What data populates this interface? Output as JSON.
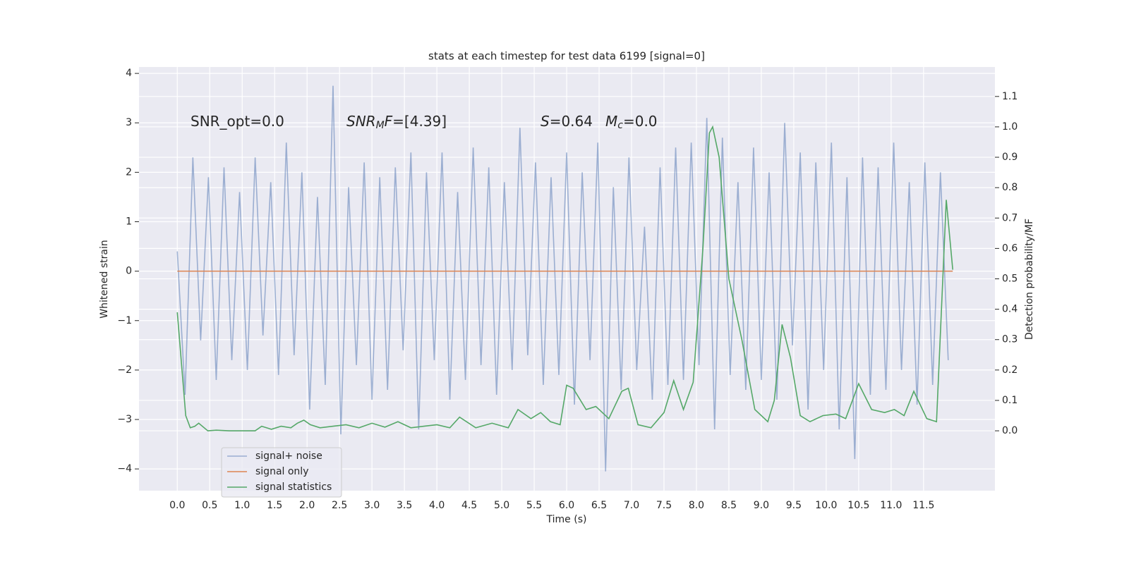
{
  "chart_data": {
    "type": "line",
    "title": "stats at each timestep for test data 6199 [signal=0]",
    "xlabel": "Time (s)",
    "ylabel": "Whitened strain",
    "y2label": "Detection probability/MF",
    "xlim": [
      -0.59,
      12.6
    ],
    "ylim": [
      -4.44,
      4.13
    ],
    "y2lim": [
      -0.197,
      1.197
    ],
    "xticks": [
      {
        "value": 0,
        "label": "0.0"
      },
      0.5,
      {
        "value": 1,
        "label": "1.0"
      },
      1.5,
      {
        "value": 2,
        "label": "2.0"
      },
      2.5,
      {
        "value": 3,
        "label": "3.0"
      },
      3.5,
      {
        "value": 4,
        "label": "4.0"
      },
      4.5,
      {
        "value": 5,
        "label": "5.0"
      },
      5.5,
      {
        "value": 6,
        "label": "6.0"
      },
      6.5,
      {
        "value": 7,
        "label": "7.0"
      },
      7.5,
      {
        "value": 8,
        "label": "8.0"
      },
      8.5,
      {
        "value": 9,
        "label": "9.0"
      },
      9.5,
      {
        "value": 10,
        "label": "10.0"
      },
      10.5,
      {
        "value": 11,
        "label": "11.0"
      },
      11.5
    ],
    "yticks": [
      {
        "value": -4,
        "label": "−4"
      },
      {
        "value": -3,
        "label": "−3"
      },
      {
        "value": -2,
        "label": "−2"
      },
      {
        "value": -1,
        "label": "−1"
      },
      0,
      1,
      2,
      3,
      4
    ],
    "y2ticks": [
      {
        "value": 0,
        "label": "0.0"
      },
      0.1,
      0.2,
      0.3,
      0.4,
      0.5,
      0.6,
      0.7,
      0.8,
      0.9,
      {
        "value": 1,
        "label": "1.0"
      },
      1.1
    ],
    "grid": true,
    "legend": "lower left",
    "annotations": [
      [
        {
          "text": "SNR_opt=0.0"
        }
      ],
      [
        {
          "text": "SNR",
          "style": "italic"
        },
        {
          "text": "M",
          "style": "italic-sub"
        },
        {
          "text": "F",
          "style": "italic"
        },
        {
          "text": "=[4.39]"
        }
      ],
      [
        {
          "text": "S",
          "style": "italic"
        },
        {
          "text": "=0.64"
        }
      ],
      [
        {
          "text": "M",
          "style": "italic"
        },
        {
          "text": "c",
          "style": "italic-sub"
        },
        {
          "text": "=0.0"
        }
      ]
    ],
    "series": [
      {
        "name": "signal+ noise",
        "color": "#4c72b0",
        "opacity": 0.5,
        "x": [
          0,
          0.12,
          0.24,
          0.36,
          0.48,
          0.6,
          0.72,
          0.84,
          0.96,
          1.08,
          1.2,
          1.32,
          1.44,
          1.56,
          1.68,
          1.8,
          1.92,
          2.04,
          2.16,
          2.28,
          2.4,
          2.52,
          2.64,
          2.76,
          2.88,
          3,
          3.12,
          3.24,
          3.36,
          3.48,
          3.6,
          3.72,
          3.84,
          3.96,
          4.08,
          4.2,
          4.32,
          4.44,
          4.56,
          4.68,
          4.8,
          4.92,
          5.04,
          5.16,
          5.28,
          5.4,
          5.52,
          5.64,
          5.76,
          5.88,
          6,
          6.12,
          6.24,
          6.36,
          6.48,
          6.6,
          6.72,
          6.84,
          6.96,
          7.08,
          7.2,
          7.32,
          7.44,
          7.56,
          7.68,
          7.8,
          7.92,
          8.04,
          8.16,
          8.28,
          8.4,
          8.52,
          8.64,
          8.76,
          8.88,
          9,
          9.12,
          9.24,
          9.36,
          9.48,
          9.6,
          9.72,
          9.84,
          9.96,
          10.08,
          10.2,
          10.32,
          10.44,
          10.56,
          10.68,
          10.8,
          10.92,
          11.04,
          11.16,
          11.28,
          11.4,
          11.52,
          11.64,
          11.76,
          11.88
        ],
        "values": [
          0.4,
          -2.5,
          2.3,
          -1.4,
          1.9,
          -2.2,
          2.1,
          -1.8,
          1.6,
          -2.0,
          2.3,
          -1.3,
          1.8,
          -2.1,
          2.6,
          -1.7,
          2.0,
          -2.8,
          1.5,
          -2.3,
          3.75,
          -3.3,
          1.7,
          -1.9,
          2.2,
          -2.6,
          1.9,
          -2.4,
          2.1,
          -1.6,
          2.4,
          -3.2,
          2.0,
          -1.8,
          2.4,
          -2.6,
          1.6,
          -2.2,
          2.5,
          -1.9,
          2.1,
          -2.5,
          1.8,
          -2.0,
          2.9,
          -1.7,
          2.2,
          -2.3,
          1.9,
          -2.1,
          2.4,
          -2.7,
          2.0,
          -1.8,
          2.6,
          -4.05,
          1.7,
          -2.4,
          2.3,
          -2.0,
          0.9,
          -2.6,
          2.1,
          -2.3,
          2.5,
          -2.2,
          2.6,
          -1.9,
          3.1,
          -3.2,
          2.7,
          -2.1,
          1.8,
          -2.4,
          2.5,
          -2.2,
          2.0,
          -2.6,
          3.0,
          -1.5,
          2.4,
          -2.8,
          2.2,
          -2.0,
          2.6,
          -3.2,
          1.9,
          -3.8,
          2.3,
          -2.5,
          2.1,
          -2.4,
          2.6,
          -2.0,
          1.8,
          -2.7,
          2.2,
          -2.3,
          2.0,
          -1.8
        ]
      },
      {
        "name": "signal only",
        "color": "#dd8452",
        "opacity": 1,
        "x": [
          0,
          11.95
        ],
        "values": [
          0,
          0
        ]
      },
      {
        "name": "signal statistics",
        "color": "#55a868",
        "opacity": 1,
        "axis": "y2",
        "x": [
          0,
          0.13,
          0.2,
          0.27,
          0.33,
          0.47,
          0.6,
          0.8,
          1.0,
          1.2,
          1.3,
          1.45,
          1.6,
          1.75,
          1.85,
          1.95,
          2.05,
          2.2,
          2.4,
          2.6,
          2.8,
          3.0,
          3.2,
          3.4,
          3.6,
          3.8,
          4.0,
          4.2,
          4.35,
          4.6,
          4.85,
          5.1,
          5.25,
          5.45,
          5.6,
          5.75,
          5.9,
          6.0,
          6.1,
          6.3,
          6.45,
          6.65,
          6.85,
          6.95,
          7.1,
          7.3,
          7.5,
          7.65,
          7.8,
          7.95,
          8.1,
          8.2,
          8.25,
          8.35,
          8.5,
          8.7,
          8.9,
          9.1,
          9.2,
          9.32,
          9.45,
          9.6,
          9.75,
          9.95,
          10.15,
          10.3,
          10.5,
          10.7,
          10.9,
          11.05,
          11.2,
          11.35,
          11.55,
          11.7,
          11.85,
          11.95
        ],
        "values": [
          0.39,
          0.05,
          0.01,
          0.015,
          0.025,
          0.0,
          0.002,
          0.0,
          0.0,
          0.0,
          0.015,
          0.005,
          0.015,
          0.01,
          0.025,
          0.035,
          0.02,
          0.01,
          0.015,
          0.02,
          0.01,
          0.025,
          0.012,
          0.03,
          0.01,
          0.015,
          0.02,
          0.01,
          0.045,
          0.01,
          0.025,
          0.01,
          0.07,
          0.04,
          0.06,
          0.03,
          0.02,
          0.15,
          0.14,
          0.07,
          0.08,
          0.04,
          0.13,
          0.14,
          0.02,
          0.01,
          0.06,
          0.165,
          0.07,
          0.16,
          0.6,
          0.98,
          1.0,
          0.9,
          0.5,
          0.3,
          0.07,
          0.03,
          0.1,
          0.35,
          0.24,
          0.05,
          0.03,
          0.05,
          0.055,
          0.04,
          0.155,
          0.07,
          0.06,
          0.07,
          0.05,
          0.13,
          0.04,
          0.03,
          0.76,
          0.53
        ]
      }
    ]
  }
}
